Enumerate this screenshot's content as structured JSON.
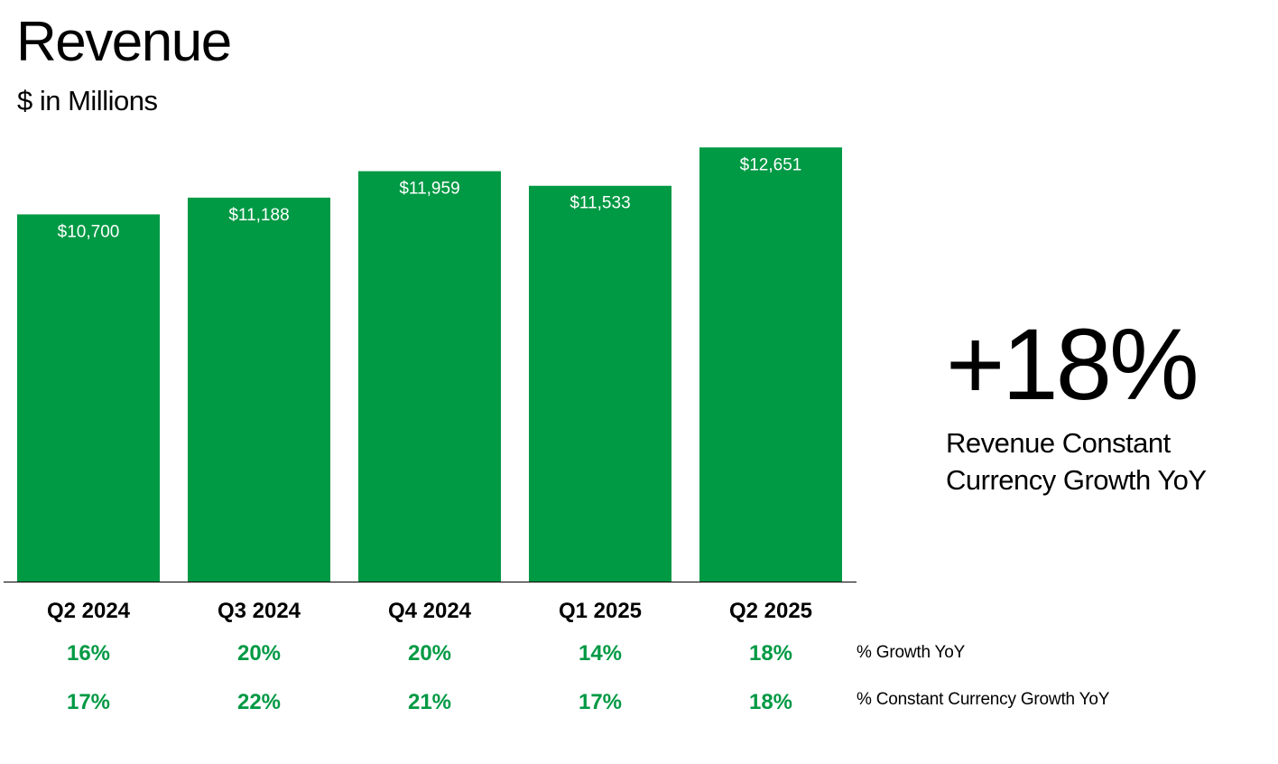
{
  "title": "Revenue",
  "subtitle": "$ in Millions",
  "colors": {
    "bar": "#009944",
    "growth_text": "#009944",
    "axis": "#000000"
  },
  "chart_data": {
    "type": "bar",
    "categories": [
      "Q2 2024",
      "Q3 2024",
      "Q4 2024",
      "Q1 2025",
      "Q2 2025"
    ],
    "values": [
      10700,
      11188,
      11959,
      11533,
      12651
    ],
    "value_labels": [
      "$10,700",
      "$11,188",
      "$11,959",
      "$11,533",
      "$12,651"
    ],
    "ylim": [
      0,
      13000
    ],
    "grid": false,
    "rows": [
      {
        "label": "% Growth YoY",
        "values": [
          "16%",
          "20%",
          "20%",
          "14%",
          "18%"
        ]
      },
      {
        "label": "% Constant Currency Growth YoY",
        "values": [
          "17%",
          "22%",
          "21%",
          "17%",
          "18%"
        ]
      }
    ]
  },
  "highlight": {
    "value": "+18%",
    "caption": "Revenue Constant Currency Growth YoY"
  }
}
